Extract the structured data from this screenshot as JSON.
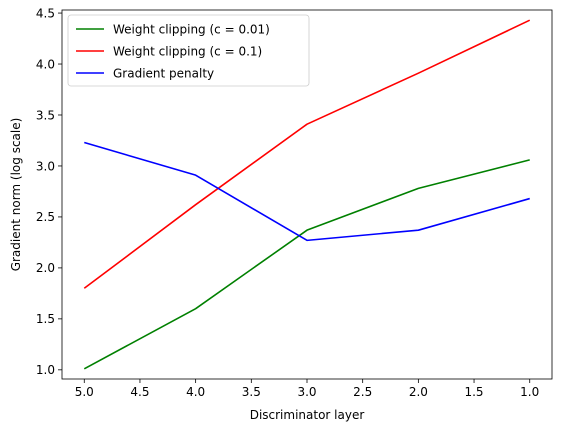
{
  "chart_data": {
    "type": "line",
    "xlabel": "Discriminator layer",
    "ylabel": "Gradient norm (log scale)",
    "x": [
      5.0,
      4.0,
      3.0,
      2.0,
      1.0
    ],
    "xlim": [
      5.2,
      0.8
    ],
    "ylim": [
      0.91,
      4.53
    ],
    "x_inverted": true,
    "xticks": [
      5.0,
      4.5,
      4.0,
      3.5,
      3.0,
      2.5,
      2.0,
      1.5,
      1.0
    ],
    "xtick_labels": [
      "5.0",
      "4.5",
      "4.0",
      "3.5",
      "3.0",
      "2.5",
      "2.0",
      "1.5",
      "1.0"
    ],
    "yticks": [
      1.0,
      1.5,
      2.0,
      2.5,
      3.0,
      3.5,
      4.0,
      4.5
    ],
    "ytick_labels": [
      "1.0",
      "1.5",
      "2.0",
      "2.5",
      "3.0",
      "3.5",
      "4.0",
      "4.5"
    ],
    "grid": false,
    "legend_position": "top-left",
    "series": [
      {
        "name": "Weight clipping (c = 0.01)",
        "color": "#008000",
        "values": [
          1.01,
          1.6,
          2.37,
          2.78,
          3.06
        ]
      },
      {
        "name": "Weight clipping (c = 0.1)",
        "color": "#ff0000",
        "values": [
          1.8,
          2.62,
          3.41,
          3.91,
          4.43
        ]
      },
      {
        "name": "Gradient penalty",
        "color": "#0000ff",
        "values": [
          3.23,
          2.91,
          2.27,
          2.37,
          2.68
        ]
      }
    ]
  }
}
